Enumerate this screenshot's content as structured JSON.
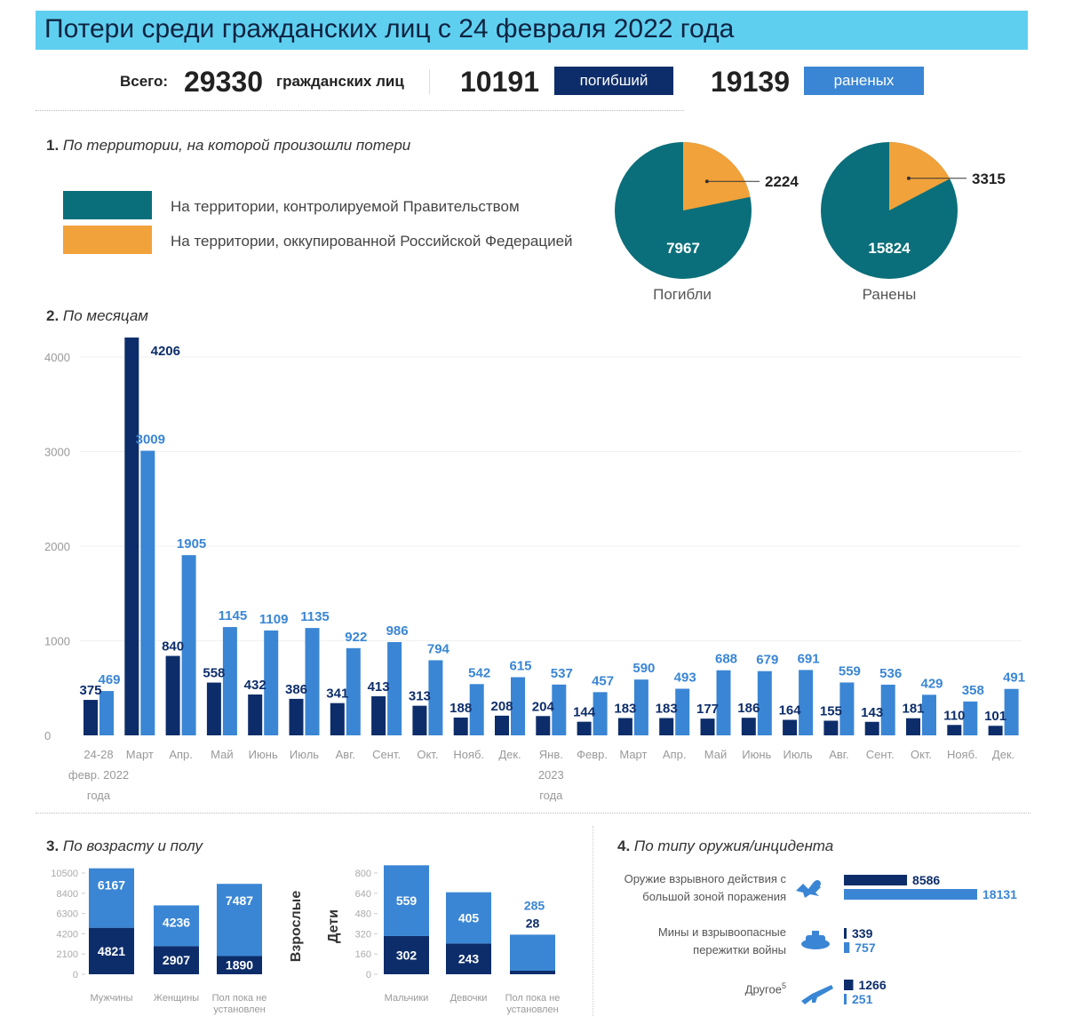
{
  "title": "Потери среди гражданских лиц с 24 февраля 2022 года",
  "colors": {
    "killed": "#0d2d6a",
    "injured": "#3a86d4",
    "gov": "#0a6f7a",
    "occupied": "#f2a23a",
    "title_bg": "#5fcff0"
  },
  "totals": {
    "label": "Всего:",
    "total": "29330",
    "unit": "гражданских лиц",
    "killed": "10191",
    "killed_label": "погибший",
    "injured": "19139",
    "injured_label": "раненых"
  },
  "section1": {
    "title_num": "1.",
    "title": "По территории, на которой произошли потери",
    "legend_gov": "На территории, контролируемой Правительством",
    "legend_occ": "На территории, оккупированной Российской Федерацией",
    "pie_killed": {
      "gov": "7967",
      "occ": "2224",
      "caption": "Погибли"
    },
    "pie_injured": {
      "gov": "15824",
      "occ": "3315",
      "caption": "Ранены"
    }
  },
  "section2": {
    "title_num": "2.",
    "title": "По месяцам"
  },
  "section3": {
    "title_num": "3.",
    "title": "По возрасту и полу",
    "adults_label": "Взрослые",
    "children_label": "Дети",
    "adult_ticks": [
      "10500",
      "8400",
      "6300",
      "4200",
      "2100",
      "0"
    ],
    "child_ticks": [
      "800",
      "640",
      "480",
      "320",
      "160",
      "0"
    ],
    "adults": [
      {
        "name": "Мужчины",
        "killed": "4821",
        "injured": "6167"
      },
      {
        "name": "Женщины",
        "killed": "2907",
        "injured": "4236"
      },
      {
        "name": "Пол пока не установлен",
        "killed": "1890",
        "injured": "7487"
      }
    ],
    "children": [
      {
        "name": "Мальчики",
        "killed": "302",
        "injured": "559"
      },
      {
        "name": "Девочки",
        "killed": "243",
        "injured": "405"
      },
      {
        "name": "Пол пока не установлен",
        "killed": "28",
        "injured": "285"
      }
    ]
  },
  "section4": {
    "title_num": "4.",
    "title": "По типу оружия/инцидента",
    "rows": [
      {
        "name": "Оружие взрывного действия с большой зоной поражения",
        "killed": "8586",
        "injured": "18131",
        "icon": "explosion-icon"
      },
      {
        "name": "Мины и взрывоопасные пережитки войны",
        "killed": "339",
        "injured": "757",
        "icon": "mine-icon"
      },
      {
        "name": "Другое",
        "sup": "5",
        "killed": "1266",
        "injured": "251",
        "icon": "rifle-icon"
      }
    ]
  },
  "chart_data": [
    {
      "type": "bar",
      "title": "По месяцам",
      "categories": [
        "24-28 февр. 2022 года",
        "Март",
        "Апр.",
        "Май",
        "Июнь",
        "Июль",
        "Авг.",
        "Сент.",
        "Окт.",
        "Нояб.",
        "Дек.",
        "Янв. 2023 года",
        "Февр.",
        "Март",
        "Апр.",
        "Май",
        "Июнь",
        "Июль",
        "Авг.",
        "Сент.",
        "Окт.",
        "Нояб.",
        "Дек."
      ],
      "series": [
        {
          "name": "погибший",
          "values": [
            375,
            4206,
            840,
            558,
            432,
            386,
            341,
            413,
            313,
            188,
            208,
            204,
            144,
            183,
            183,
            177,
            186,
            164,
            155,
            143,
            181,
            110,
            101
          ]
        },
        {
          "name": "раненых",
          "values": [
            469,
            3009,
            1905,
            1145,
            1109,
            1135,
            922,
            986,
            794,
            542,
            615,
            537,
            457,
            590,
            493,
            688,
            679,
            691,
            559,
            536,
            429,
            358,
            491
          ]
        }
      ],
      "y_ticks": [
        "4000",
        "3000",
        "2000",
        "1000",
        "0"
      ],
      "ylim": [
        0,
        4206
      ]
    },
    {
      "type": "pie",
      "title": "Погибли",
      "labels": [
        "На территории, контролируемой Правительством",
        "На территории, оккупированной Российской Федерацией"
      ],
      "values": [
        7967,
        2224
      ]
    },
    {
      "type": "pie",
      "title": "Ранены",
      "labels": [
        "На территории, контролируемой Правительством",
        "На территории, оккупированной Российской Федерацией"
      ],
      "values": [
        15824,
        3315
      ]
    }
  ]
}
